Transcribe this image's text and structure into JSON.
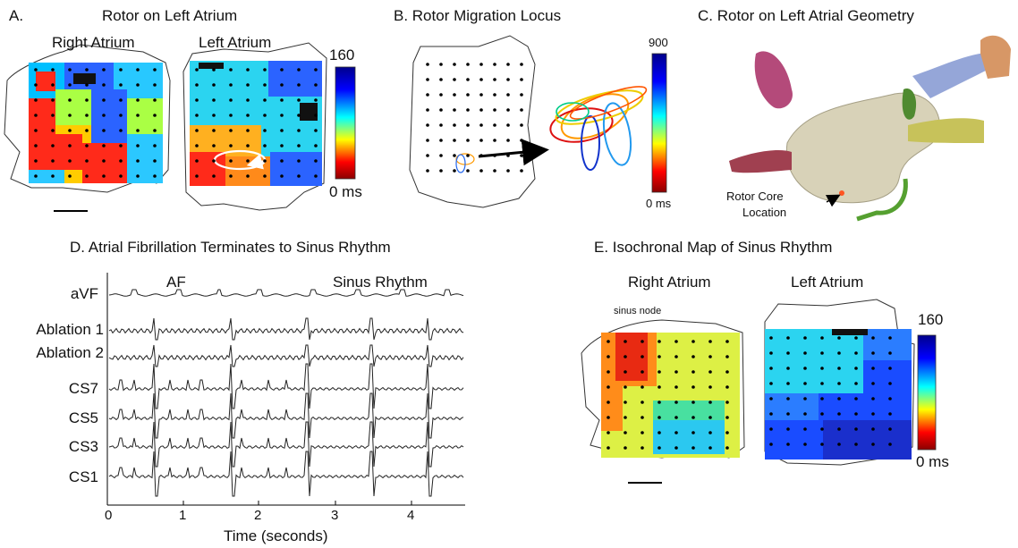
{
  "panelA": {
    "title": "A.",
    "heading": "Rotor on Left Atrium",
    "right_label": "Right Atrium",
    "left_label": "Left Atrium",
    "scale_max": "160",
    "scale_min": "0 ms"
  },
  "panelB": {
    "heading": "B. Rotor Migration Locus",
    "scale_max": "900",
    "scale_min": "0 ms"
  },
  "panelC": {
    "heading": "C. Rotor on Left Atrial Geometry",
    "core_label_1": "Rotor Core",
    "core_label_2": "Location"
  },
  "panelD": {
    "heading": "D. Atrial Fibrillation Terminates to Sinus Rhythm",
    "af_label": "AF",
    "sinus_label": "Sinus Rhythm",
    "traces": [
      "aVF",
      "Ablation 1",
      "Ablation 2",
      "CS7",
      "CS5",
      "CS3",
      "CS1"
    ],
    "x_ticks": [
      "0",
      "1",
      "2",
      "3",
      "4"
    ],
    "x_label": "Time (seconds)"
  },
  "panelE": {
    "heading": "E. Isochronal Map of Sinus Rhythm",
    "right_label": "Right Atrium",
    "left_label": "Left Atrium",
    "node_label": "sinus node",
    "scale_max": "160",
    "scale_min": "0 ms"
  }
}
